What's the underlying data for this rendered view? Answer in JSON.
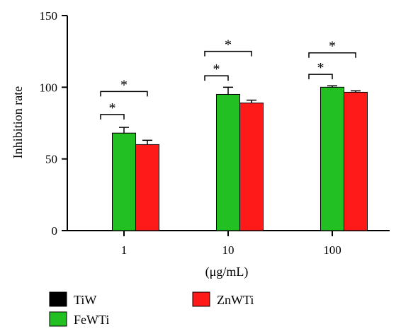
{
  "chart_data": {
    "type": "bar",
    "title": "",
    "xlabel": "(μg/mL)",
    "ylabel": "Inhibition rate",
    "ylim": [
      0,
      150
    ],
    "yticks": [
      0,
      50,
      100,
      150
    ],
    "grid": false,
    "legend_position": "bottom-left",
    "categories": [
      "1",
      "10",
      "100"
    ],
    "series": [
      {
        "name": "TiW",
        "color": "#000000",
        "values": [
          0,
          0,
          0
        ],
        "errors": [
          0,
          0,
          0
        ]
      },
      {
        "name": "FeWTi",
        "color": "#22c022",
        "values": [
          68,
          95,
          100
        ],
        "errors": [
          4,
          5,
          1
        ]
      },
      {
        "name": "ZnWTi",
        "color": "#ff1a1a",
        "values": [
          60,
          89,
          96.5
        ],
        "errors": [
          3,
          2,
          1
        ]
      }
    ],
    "significance": [
      {
        "category": 0,
        "from": 0,
        "to": 1,
        "y": 81,
        "label": "*"
      },
      {
        "category": 0,
        "from": 0,
        "to": 2,
        "y": 97,
        "label": "*"
      },
      {
        "category": 1,
        "from": 0,
        "to": 1,
        "y": 108,
        "label": "*"
      },
      {
        "category": 1,
        "from": 0,
        "to": 2,
        "y": 125,
        "label": "*"
      },
      {
        "category": 2,
        "from": 0,
        "to": 1,
        "y": 109,
        "label": "*"
      },
      {
        "category": 2,
        "from": 0,
        "to": 2,
        "y": 124,
        "label": "*"
      }
    ]
  }
}
